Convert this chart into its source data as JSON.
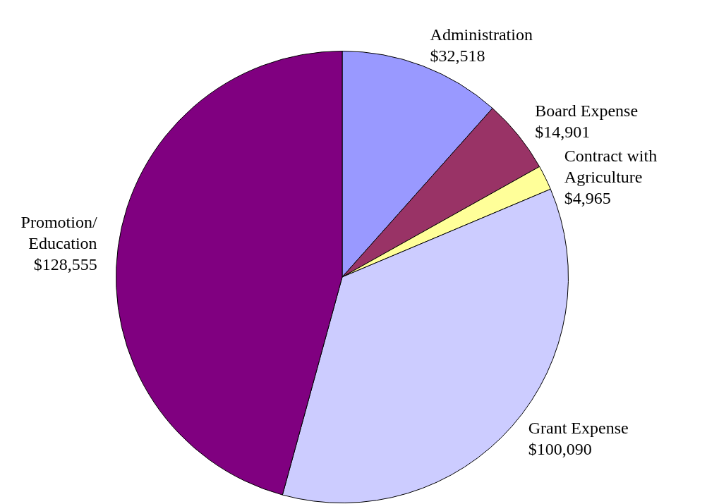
{
  "chart_data": {
    "type": "pie",
    "categories": [
      "Administration",
      "Board Expense",
      "Contract with Agriculture",
      "Grant Expense",
      "Promotion/ Education"
    ],
    "values": [
      32518,
      14901,
      4965,
      100090,
      128555
    ],
    "value_labels": [
      "$32,518",
      "$14,901",
      "$4,965",
      "$100,090",
      "$128,555"
    ],
    "colors": [
      "#9999ff",
      "#993366",
      "#ffff99",
      "#ccccff",
      "#800080"
    ],
    "legend": false
  }
}
